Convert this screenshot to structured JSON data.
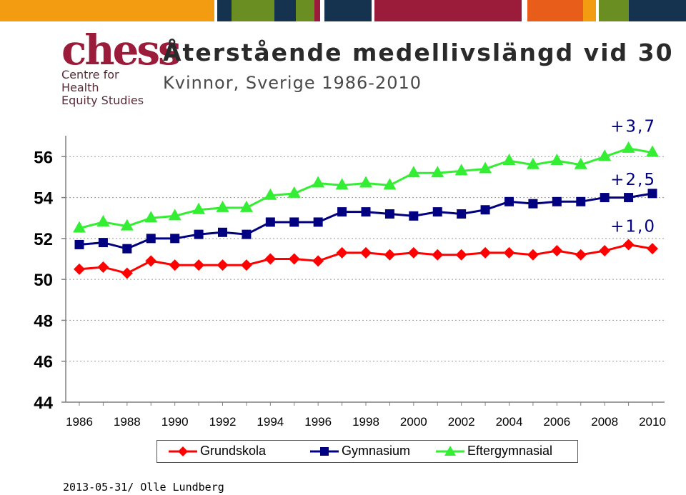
{
  "header": {
    "logo_text": "chess",
    "logo_line1": "Centre for Health",
    "logo_line2": "Equity Studies",
    "title": "Återstående medellivslängd vid 30",
    "subtitle": "Kvinnor, Sverige 1986-2010"
  },
  "colors": {
    "logo": "#9b1c3a",
    "bar": [
      "#f39c12",
      "#15324f",
      "#6b8e23",
      "#15324f",
      "#6b8e23",
      "#9b1c3a",
      "#e85d1a",
      "#f39c12",
      "#6b8e23",
      "#15324f"
    ]
  },
  "chart_data": {
    "type": "line",
    "x": [
      1986,
      1987,
      1988,
      1989,
      1990,
      1991,
      1992,
      1993,
      1994,
      1995,
      1996,
      1997,
      1998,
      1999,
      2000,
      2001,
      2002,
      2003,
      2004,
      2005,
      2006,
      2007,
      2008,
      2009,
      2010
    ],
    "xticks": [
      "1986",
      "1988",
      "1990",
      "1992",
      "1994",
      "1996",
      "1998",
      "2000",
      "2002",
      "2004",
      "2006",
      "2008",
      "2010"
    ],
    "yticks": [
      "44",
      "46",
      "48",
      "50",
      "52",
      "54",
      "56"
    ],
    "ylim": [
      44,
      57
    ],
    "series": [
      {
        "name": "Grundskola",
        "color": "#ff0000",
        "marker": "diamond",
        "values": [
          50.5,
          50.6,
          50.3,
          50.9,
          50.7,
          50.7,
          50.7,
          50.7,
          51.0,
          51.0,
          50.9,
          51.3,
          51.3,
          51.2,
          51.3,
          51.2,
          51.2,
          51.3,
          51.3,
          51.2,
          51.4,
          51.2,
          51.4,
          51.7,
          51.5
        ]
      },
      {
        "name": "Gymnasium",
        "color": "#000080",
        "marker": "square",
        "values": [
          51.7,
          51.8,
          51.5,
          52.0,
          52.0,
          52.2,
          52.3,
          52.2,
          52.8,
          52.8,
          52.8,
          53.3,
          53.3,
          53.2,
          53.1,
          53.3,
          53.2,
          53.4,
          53.8,
          53.7,
          53.8,
          53.8,
          54.0,
          54.0,
          54.2
        ]
      },
      {
        "name": "Eftergymnasial",
        "color": "#33ee33",
        "marker": "triangle",
        "values": [
          52.5,
          52.8,
          52.6,
          53.0,
          53.1,
          53.4,
          53.5,
          53.5,
          54.1,
          54.2,
          54.7,
          54.6,
          54.7,
          54.6,
          55.2,
          55.2,
          55.3,
          55.4,
          55.8,
          55.6,
          55.8,
          55.6,
          56.0,
          56.4,
          56.2
        ]
      }
    ],
    "annotations": [
      {
        "text": "+3,7",
        "y": 57.5
      },
      {
        "text": "+2,5",
        "y": 54.9
      },
      {
        "text": "+1,0",
        "y": 52.6
      }
    ]
  },
  "footer": {
    "text": "2013-05-31/ Olle Lundberg"
  }
}
